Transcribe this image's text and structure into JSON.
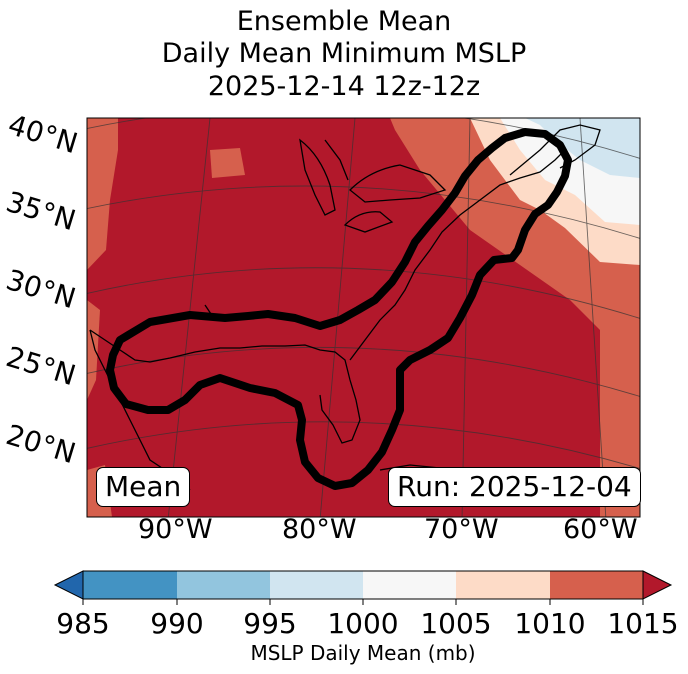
{
  "title": {
    "line1": "Ensemble Mean",
    "line2": "Daily Mean Minimum MSLP",
    "line3": "2025-12-14 12z-12z"
  },
  "map": {
    "lat_labels": [
      "40°N",
      "35°N",
      "30°N",
      "25°N",
      "20°N"
    ],
    "lon_labels": [
      "90°W",
      "80°W",
      "70°W",
      "60°W"
    ],
    "mean_label": "Mean",
    "run_label": "Run: 2025-12-04",
    "fill_colors": {
      "lt_985": "#2166ac",
      "985_990": "#4393c3",
      "990_995": "#92c5de",
      "995_1000": "#d1e5f0",
      "1000_1005": "#f7f7f7",
      "1005_1010": "#fddbc7",
      "1010_1015": "#d6604d",
      "gt_1015": "#b2182b"
    }
  },
  "colorbar": {
    "ticks": [
      "985",
      "990",
      "995",
      "1000",
      "1005",
      "1010",
      "1015"
    ],
    "label": "MSLP Daily Mean (mb)"
  }
}
